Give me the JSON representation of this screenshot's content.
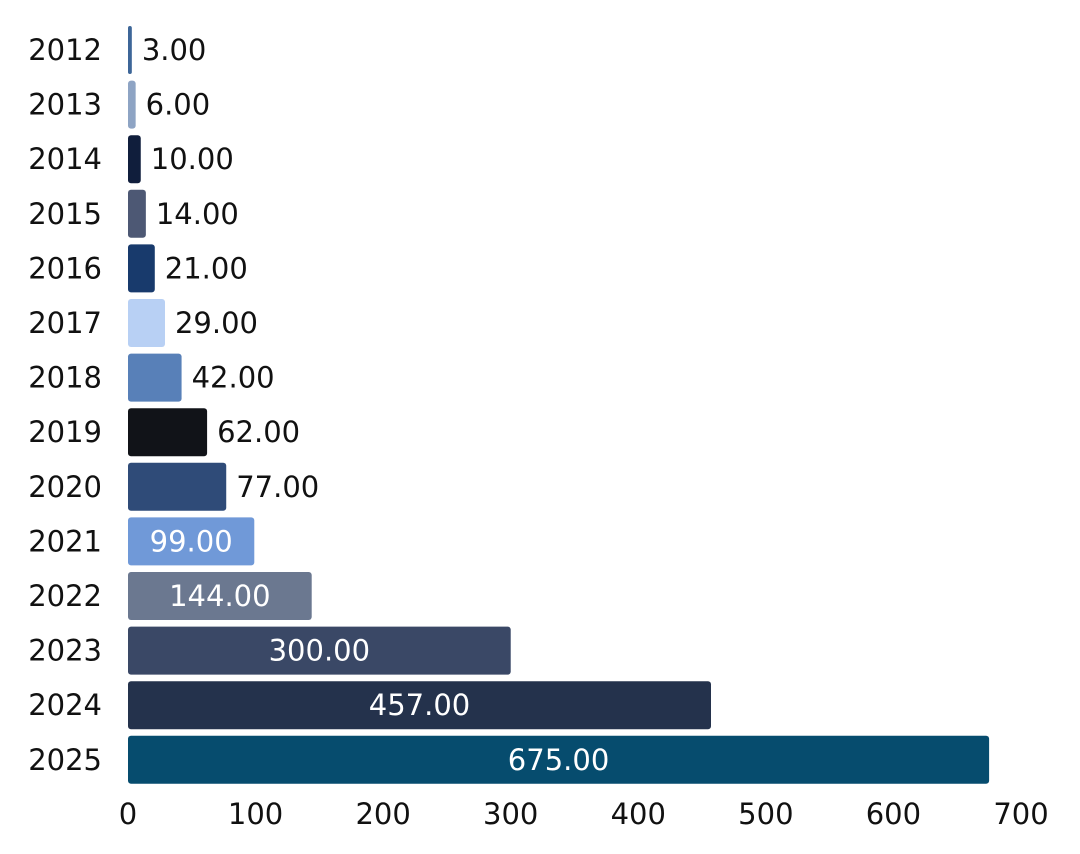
{
  "chart_data": {
    "type": "bar",
    "orientation": "horizontal",
    "title": "",
    "xlabel": "",
    "ylabel": "",
    "categories": [
      "2012",
      "2013",
      "2014",
      "2015",
      "2016",
      "2017",
      "2018",
      "2019",
      "2020",
      "2021",
      "2022",
      "2023",
      "2024",
      "2025"
    ],
    "values": [
      3,
      6,
      10,
      14,
      21,
      29,
      42,
      62,
      77,
      99,
      144,
      300,
      457,
      675
    ],
    "value_labels": [
      "3.00",
      "6.00",
      "10.00",
      "14.00",
      "21.00",
      "29.00",
      "42.00",
      "62.00",
      "77.00",
      "99.00",
      "144.00",
      "300.00",
      "457.00",
      "675.00"
    ],
    "bar_colors": [
      "#3d6698",
      "#8ea4c4",
      "#101e3c",
      "#4d5874",
      "#183a6c",
      "#b8d0f4",
      "#5880b8",
      "#111318",
      "#2f4b78",
      "#7099d8",
      "#6b7890",
      "#3a4866",
      "#24324c",
      "#064c6e"
    ],
    "xlim": [
      0,
      700
    ],
    "xticks": [
      0,
      100,
      200,
      300,
      400,
      500,
      600,
      700
    ],
    "xtick_labels": [
      "0",
      "100",
      "200",
      "300",
      "400",
      "500",
      "600",
      "700"
    ],
    "grid": false,
    "legend": "none"
  }
}
